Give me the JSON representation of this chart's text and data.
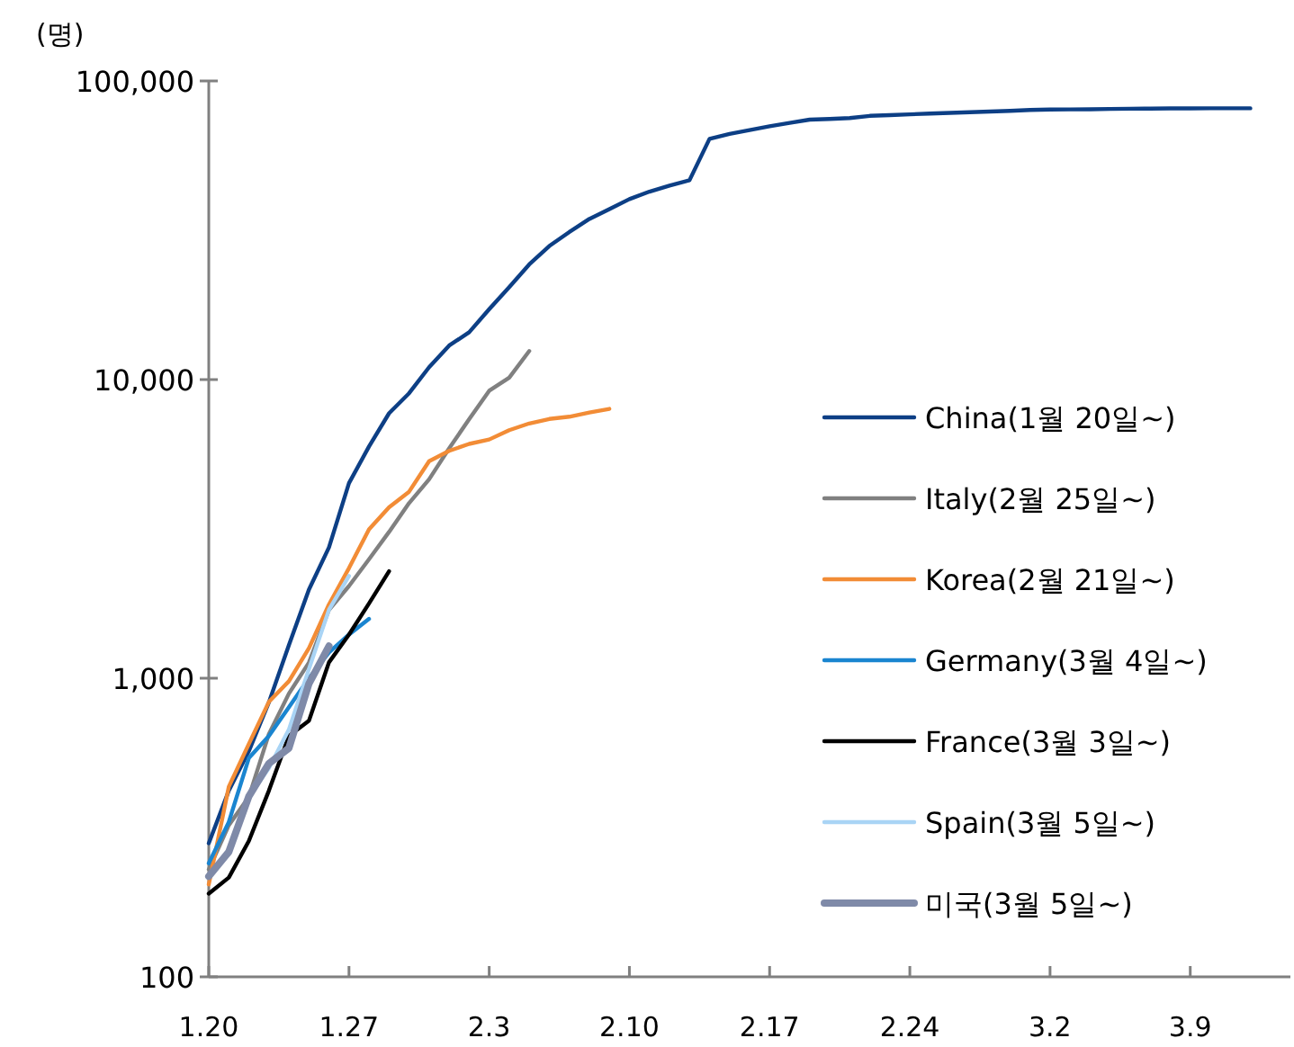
{
  "chart_data": {
    "type": "line",
    "ylabel": "(명)",
    "log": true,
    "legend": "right",
    "grid": false,
    "marker": "none",
    "line_style": "solid",
    "categories": [
      "1.20",
      null,
      null,
      null,
      null,
      null,
      null,
      "1.27",
      null,
      null,
      null,
      null,
      null,
      null,
      "2.3",
      null,
      null,
      null,
      null,
      null,
      null,
      "2.10",
      null,
      null,
      null,
      null,
      null,
      null,
      "2.17",
      null,
      null,
      null,
      null,
      null,
      null,
      "2.24",
      null,
      null,
      null,
      null,
      null,
      null,
      "3.2",
      null,
      null,
      null,
      null,
      null,
      null,
      "3.9",
      null,
      null,
      null,
      null
    ],
    "ylim": [
      100,
      100000
    ],
    "yticks": [
      {
        "value": 100,
        "label": "100"
      },
      {
        "value": 1000,
        "label": "1,000"
      },
      {
        "value": 10000,
        "label": "10,000"
      },
      {
        "value": 100000,
        "label": "100,000"
      }
    ],
    "series": [
      {
        "name": "China(1월 20일~)",
        "color": "#0d3f85",
        "values": [
          280,
          420,
          570,
          830,
          1290,
          1980,
          2740,
          4500,
          5970,
          7710,
          9000,
          11000,
          13000,
          14400,
          17200,
          20400,
          24300,
          28000,
          31200,
          34500,
          37200,
          40200,
          42600,
          44600,
          46500,
          64000,
          66500,
          68500,
          70500,
          72400,
          74200,
          74600,
          75100,
          76400,
          76800,
          77300,
          77800,
          78200,
          78600,
          79000,
          79400,
          80000,
          80200,
          80300,
          80400,
          80600,
          80700,
          80800,
          80900,
          80900,
          81000,
          81000,
          81000,
          null
        ]
      },
      {
        "name": "Italy(2월 25일~)",
        "color": "#808080",
        "values": [
          229,
          322,
          400,
          650,
          888,
          1128,
          1694,
          2036,
          2502,
          3089,
          3858,
          4636,
          5883,
          7375,
          9172,
          10149,
          12462,
          null,
          null,
          null,
          null,
          null,
          null,
          null,
          null,
          null,
          null,
          null,
          null,
          null,
          null,
          null,
          null,
          null,
          null,
          null,
          null,
          null,
          null,
          null,
          null,
          null,
          null,
          null,
          null,
          null,
          null,
          null,
          null,
          null,
          null,
          null,
          null,
          null
        ]
      },
      {
        "name": "Korea(2월 21일~)",
        "color": "#f28c36",
        "values": [
          204,
          433,
          602,
          833,
          977,
          1261,
          1766,
          2337,
          3150,
          3736,
          4212,
          5330,
          5770,
          6090,
          6300,
          6770,
          7130,
          7380,
          7510,
          7760,
          7980,
          null,
          null,
          null,
          null,
          null,
          null,
          null,
          null,
          null,
          null,
          null,
          null,
          null,
          null,
          null,
          null,
          null,
          null,
          null,
          null,
          null,
          null,
          null,
          null,
          null,
          null,
          null,
          null,
          null,
          null,
          null,
          null,
          null
        ]
      },
      {
        "name": "Germany(3월 4일~)",
        "color": "#1a85d0",
        "values": [
          240,
          330,
          540,
          640,
          800,
          1000,
          1220,
          1400,
          1580,
          null,
          null,
          null,
          null,
          null,
          null,
          null,
          null,
          null,
          null,
          null,
          null,
          null,
          null,
          null,
          null,
          null,
          null,
          null,
          null,
          null,
          null,
          null,
          null,
          null,
          null,
          null,
          null,
          null,
          null,
          null,
          null,
          null,
          null,
          null,
          null,
          null,
          null,
          null,
          null,
          null,
          null,
          null,
          null,
          null
        ]
      },
      {
        "name": "France(3월 3일~)",
        "color": "#000000",
        "values": [
          190,
          215,
          285,
          420,
          640,
          720,
          1130,
          1400,
          1780,
          2280,
          null,
          null,
          null,
          null,
          null,
          null,
          null,
          null,
          null,
          null,
          null,
          null,
          null,
          null,
          null,
          null,
          null,
          null,
          null,
          null,
          null,
          null,
          null,
          null,
          null,
          null,
          null,
          null,
          null,
          null,
          null,
          null,
          null,
          null,
          null,
          null,
          null,
          null,
          null,
          null,
          null,
          null,
          null,
          null
        ]
      },
      {
        "name": "Spain(3월 5일~)",
        "color": "#a9d4f5",
        "values": [
          220,
          259,
          400,
          500,
          673,
          1073,
          1695,
          2200,
          null,
          null,
          null,
          null,
          null,
          null,
          null,
          null,
          null,
          null,
          null,
          null,
          null,
          null,
          null,
          null,
          null,
          null,
          null,
          null,
          null,
          null,
          null,
          null,
          null,
          null,
          null,
          null,
          null,
          null,
          null,
          null,
          null,
          null,
          null,
          null,
          null,
          null,
          null,
          null,
          null,
          null,
          null,
          null,
          null,
          null
        ]
      },
      {
        "name": "미국(3월 5일~)",
        "color": "#7f8aa8",
        "values": [
          217,
          262,
          402,
          518,
          583,
          959,
          1281,
          null,
          null,
          null,
          null,
          null,
          null,
          null,
          null,
          null,
          null,
          null,
          null,
          null,
          null,
          null,
          null,
          null,
          null,
          null,
          null,
          null,
          null,
          null,
          null,
          null,
          null,
          null,
          null,
          null,
          null,
          null,
          null,
          null,
          null,
          null,
          null,
          null,
          null,
          null,
          null,
          null,
          null,
          null,
          null,
          null,
          null,
          null
        ]
      }
    ]
  }
}
